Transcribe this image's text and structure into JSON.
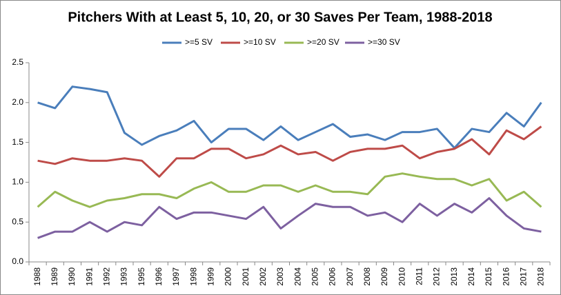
{
  "chart_data": {
    "type": "line",
    "title": "Pitchers With at Least 5, 10, 20, or 30 Saves Per Team, 1988-2018",
    "categories": [
      "1988",
      "1989",
      "1990",
      "1991",
      "1992",
      "1993",
      "1995",
      "1996",
      "1997",
      "1998",
      "1999",
      "2000",
      "2001",
      "2002",
      "2003",
      "2004",
      "2005",
      "2006",
      "2007",
      "2008",
      "2009",
      "2010",
      "2011",
      "2012",
      "2013",
      "2014",
      "2015",
      "2016",
      "2017",
      "2018"
    ],
    "series": [
      {
        "name": ">=5 SV",
        "color": "#4a7ebb",
        "values": [
          2.0,
          1.93,
          2.2,
          2.17,
          2.13,
          1.62,
          1.47,
          1.58,
          1.65,
          1.77,
          1.5,
          1.67,
          1.67,
          1.53,
          1.7,
          1.53,
          1.63,
          1.73,
          1.57,
          1.6,
          1.53,
          1.63,
          1.63,
          1.67,
          1.43,
          1.67,
          1.63,
          1.87,
          1.7,
          2.0
        ]
      },
      {
        "name": ">=10 SV",
        "color": "#be4b48",
        "values": [
          1.27,
          1.23,
          1.3,
          1.27,
          1.27,
          1.3,
          1.27,
          1.07,
          1.3,
          1.3,
          1.42,
          1.42,
          1.3,
          1.35,
          1.46,
          1.35,
          1.38,
          1.27,
          1.38,
          1.42,
          1.42,
          1.46,
          1.3,
          1.38,
          1.42,
          1.54,
          1.35,
          1.65,
          1.54,
          1.7
        ]
      },
      {
        "name": ">=20 SV",
        "color": "#98b954",
        "values": [
          0.69,
          0.88,
          0.77,
          0.69,
          0.77,
          0.8,
          0.85,
          0.85,
          0.8,
          0.92,
          1.0,
          0.88,
          0.88,
          0.96,
          0.96,
          0.88,
          0.96,
          0.88,
          0.88,
          0.85,
          1.07,
          1.11,
          1.07,
          1.04,
          1.04,
          0.96,
          1.04,
          0.77,
          0.88,
          0.69
        ]
      },
      {
        "name": ">=30 SV",
        "color": "#7d60a0",
        "values": [
          0.3,
          0.38,
          0.38,
          0.5,
          0.38,
          0.5,
          0.46,
          0.69,
          0.54,
          0.62,
          0.62,
          0.58,
          0.54,
          0.69,
          0.42,
          0.58,
          0.73,
          0.69,
          0.69,
          0.58,
          0.62,
          0.5,
          0.73,
          0.58,
          0.73,
          0.62,
          0.8,
          0.58,
          0.42,
          0.38
        ]
      }
    ],
    "ylim": [
      0,
      2.5
    ],
    "yticks": [
      {
        "value": 0,
        "label": "0.0"
      },
      0.5,
      {
        "value": 1,
        "label": "1.0"
      },
      1.5,
      {
        "value": 2,
        "label": "2.0"
      },
      2.5
    ],
    "grid": false,
    "legend": "top"
  }
}
